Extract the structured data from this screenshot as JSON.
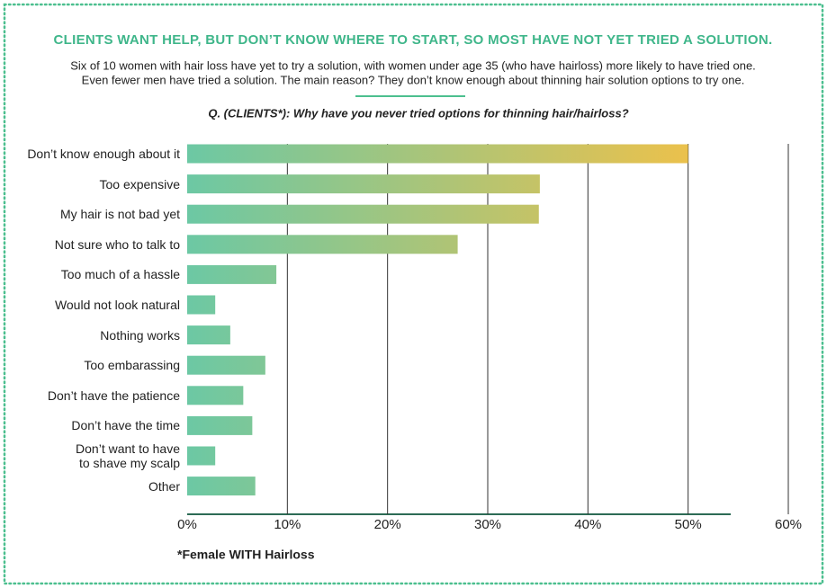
{
  "chart_data": {
    "type": "bar",
    "orientation": "horizontal",
    "title": "CLIENTS WANT HELP, BUT DON’T KNOW WHERE TO START, SO MOST HAVE NOT YET TRIED A SOLUTION.",
    "subtitle": [
      "Six of 10 women with hair loss have yet to try a solution, with women under age 35 (who have hairloss) more likely to have tried one.",
      "Even fewer men have tried a solution. The main reason? They don’t know enough about thinning hair solution options to try one."
    ],
    "question": "Q. (CLIENTS*): Why have you never tried options for thinning hair/hairloss?",
    "footnote": "*Female WITH Hairloss",
    "categories": [
      "Don’t know enough about it",
      "Too expensive",
      "My hair is not bad yet",
      "Not sure who to talk to",
      "Too much of a hassle",
      "Would not look natural",
      "Nothing works",
      "Too embarassing",
      "Don’t have the patience",
      "Don’t have the time",
      "Don’t want to have\nto shave my scalp",
      "Other"
    ],
    "values": [
      50,
      35.2,
      35.1,
      27,
      8.9,
      2.8,
      4.3,
      7.8,
      5.6,
      6.5,
      2.8,
      6.8
    ],
    "color": [
      "#6cc8a4",
      "#ebc14c"
    ],
    "xlim": [
      0,
      60
    ],
    "xticks": [
      {
        "value": 0,
        "label": "0%"
      },
      {
        "value": 10,
        "label": "10%"
      },
      {
        "value": 20,
        "label": "20%"
      },
      {
        "value": 30,
        "label": "30%"
      },
      {
        "value": 40,
        "label": "40%"
      },
      {
        "value": 50,
        "label": "50%"
      },
      {
        "value": 60,
        "label": "60%"
      }
    ],
    "grid": true
  }
}
